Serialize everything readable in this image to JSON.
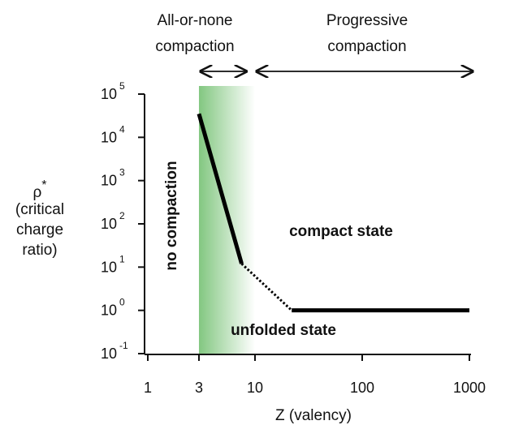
{
  "chart_data": {
    "type": "line",
    "title": "",
    "xlabel": "Z (valency)",
    "ylabel": {
      "symbol": "ρ",
      "superscript": "*",
      "line2": "(critical",
      "line3": "charge",
      "line4": "ratio)"
    },
    "x_scale": "log",
    "y_scale": "log",
    "xlim": [
      1,
      1000
    ],
    "ylim": [
      0.1,
      100000
    ],
    "x_ticks": [
      {
        "value": 1,
        "label": "1"
      },
      {
        "value": 3,
        "label": "3"
      },
      {
        "value": 10,
        "label": "10"
      },
      {
        "value": 100,
        "label": "100"
      },
      {
        "value": 1000,
        "label": "1000"
      }
    ],
    "y_ticks": [
      {
        "value": 0.1,
        "base": "10",
        "exp": "-1"
      },
      {
        "value": 1,
        "base": "10",
        "exp": "0"
      },
      {
        "value": 10,
        "base": "10",
        "exp": "1"
      },
      {
        "value": 100,
        "base": "10",
        "exp": "2"
      },
      {
        "value": 1000,
        "base": "10",
        "exp": "3"
      },
      {
        "value": 10000,
        "base": "10",
        "exp": "4"
      },
      {
        "value": 100000,
        "base": "10",
        "exp": "5"
      }
    ],
    "series": [
      {
        "segments": [
          {
            "style": "solid",
            "points": [
              [
                3,
                35000
              ],
              [
                7.5,
                12
              ]
            ]
          },
          {
            "style": "dotted",
            "points": [
              [
                7.5,
                12
              ],
              [
                22,
                1
              ]
            ]
          },
          {
            "style": "solid",
            "points": [
              [
                22,
                1
              ],
              [
                1000,
                1
              ]
            ]
          }
        ]
      }
    ],
    "shaded_region": {
      "x_from": 3,
      "x_to": 10,
      "color": "#7cc47a"
    },
    "annotations": {
      "top_left": {
        "line1": "All-or-none",
        "line2": "compaction",
        "x_from": 3,
        "x_to": 8
      },
      "top_right": {
        "line1": "Progressive",
        "line2": "compaction",
        "x_from": 10,
        "x_to": 1000
      },
      "no_compaction": "no compaction",
      "compact_state": "compact state",
      "unfolded_state": "unfolded state"
    },
    "grid": false,
    "legend": "none"
  }
}
